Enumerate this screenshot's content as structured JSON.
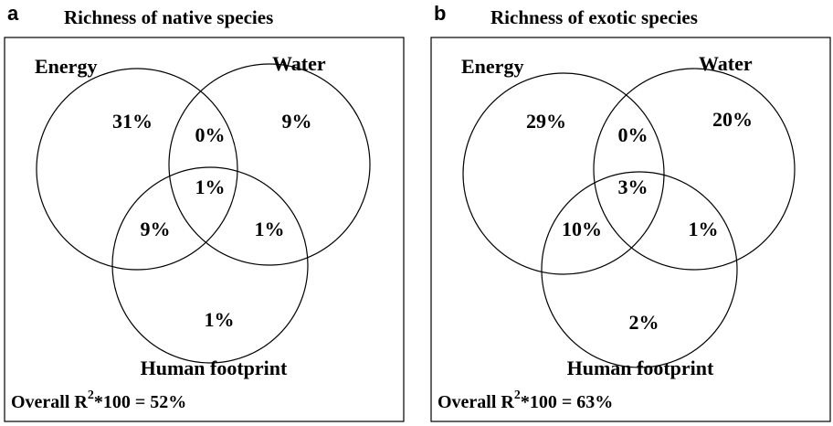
{
  "panels": [
    {
      "letter": "a",
      "title": "Richness of native species",
      "sets": [
        "Energy",
        "Water",
        "Human footprint"
      ],
      "regions": [
        "31%",
        "0%",
        "9%",
        "1%",
        "9%",
        "1%",
        "1%"
      ],
      "overall": {
        "prefix": "Overall R",
        "superscript": "2",
        "suffix": "*100 = 52%"
      }
    },
    {
      "letter": "b",
      "title": "Richness of exotic species",
      "sets": [
        "Energy",
        "Water",
        "Human footprint"
      ],
      "regions": [
        "29%",
        "0%",
        "20%",
        "3%",
        "10%",
        "1%",
        "2%"
      ],
      "overall": {
        "prefix": "Overall R",
        "superscript": "2",
        "suffix": "*100 = 63%"
      }
    }
  ]
}
